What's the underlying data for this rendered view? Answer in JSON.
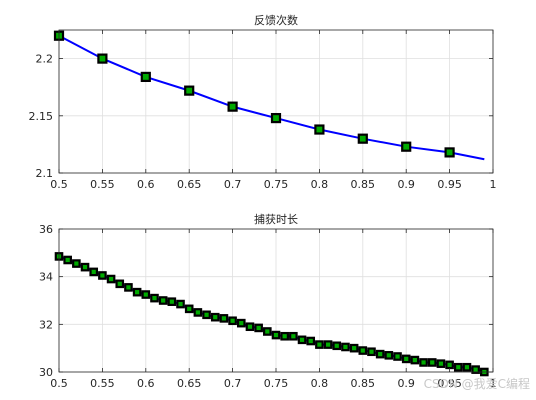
{
  "chart_data": [
    {
      "type": "line",
      "title": "反馈次数",
      "xlim": [
        0.5,
        1.0
      ],
      "ylim": [
        2.1,
        2.225
      ],
      "xticks": [
        "0.5",
        "0.55",
        "0.6",
        "0.65",
        "0.7",
        "0.75",
        "0.8",
        "0.85",
        "0.9",
        "0.95",
        "1"
      ],
      "yticks": [
        "2.1",
        "2.15",
        "2.2"
      ],
      "grid": true,
      "line_color": "#0000ff",
      "marker_edge_color": "#000000",
      "marker_face_color": "#00aa00",
      "curve": {
        "x": [
          0.5,
          0.55,
          0.6,
          0.65,
          0.7,
          0.75,
          0.8,
          0.85,
          0.9,
          0.95,
          0.99
        ],
        "y": [
          2.22,
          2.2,
          2.184,
          2.172,
          2.158,
          2.148,
          2.138,
          2.13,
          2.123,
          2.118,
          2.112
        ]
      },
      "markers": {
        "x": [
          0.5,
          0.55,
          0.6,
          0.65,
          0.7,
          0.75,
          0.8,
          0.85,
          0.9,
          0.95
        ],
        "y": [
          2.22,
          2.2,
          2.184,
          2.172,
          2.158,
          2.148,
          2.138,
          2.13,
          2.123,
          2.118
        ]
      }
    },
    {
      "type": "line",
      "title": "捕获时长",
      "xlim": [
        0.5,
        1.0
      ],
      "ylim": [
        30,
        36
      ],
      "xticks": [
        "0.5",
        "0.55",
        "0.6",
        "0.65",
        "0.7",
        "0.75",
        "0.8",
        "0.85",
        "0.9",
        "0.95",
        "1"
      ],
      "yticks": [
        "30",
        "32",
        "34",
        "36"
      ],
      "grid": true,
      "line_color": "#0000ff",
      "marker_edge_color": "#000000",
      "marker_face_color": "#00aa00",
      "curve": {
        "x": [
          0.5,
          0.51,
          0.52,
          0.53,
          0.54,
          0.55,
          0.56,
          0.57,
          0.58,
          0.59,
          0.6,
          0.61,
          0.62,
          0.63,
          0.64,
          0.65,
          0.66,
          0.67,
          0.68,
          0.69,
          0.7,
          0.71,
          0.72,
          0.73,
          0.74,
          0.75,
          0.76,
          0.77,
          0.78,
          0.79,
          0.8,
          0.81,
          0.82,
          0.83,
          0.84,
          0.85,
          0.86,
          0.87,
          0.88,
          0.89,
          0.9,
          0.91,
          0.92,
          0.93,
          0.94,
          0.95,
          0.96,
          0.97,
          0.98,
          0.99
        ],
        "y": [
          34.85,
          34.7,
          34.55,
          34.4,
          34.2,
          34.05,
          33.9,
          33.7,
          33.55,
          33.35,
          33.25,
          33.1,
          33.0,
          32.95,
          32.85,
          32.65,
          32.5,
          32.4,
          32.3,
          32.25,
          32.15,
          32.05,
          31.9,
          31.85,
          31.7,
          31.55,
          31.5,
          31.5,
          31.35,
          31.3,
          31.15,
          31.15,
          31.1,
          31.05,
          31.0,
          30.9,
          30.85,
          30.75,
          30.7,
          30.65,
          30.55,
          30.5,
          30.4,
          30.4,
          30.35,
          30.3,
          30.2,
          30.2,
          30.1,
          30.0
        ]
      },
      "markers": {
        "x": [
          0.5,
          0.51,
          0.52,
          0.53,
          0.54,
          0.55,
          0.56,
          0.57,
          0.58,
          0.59,
          0.6,
          0.61,
          0.62,
          0.63,
          0.64,
          0.65,
          0.66,
          0.67,
          0.68,
          0.69,
          0.7,
          0.71,
          0.72,
          0.73,
          0.74,
          0.75,
          0.76,
          0.77,
          0.78,
          0.79,
          0.8,
          0.81,
          0.82,
          0.83,
          0.84,
          0.85,
          0.86,
          0.87,
          0.88,
          0.89,
          0.9,
          0.91,
          0.92,
          0.93,
          0.94,
          0.95,
          0.96,
          0.97,
          0.98,
          0.99
        ],
        "y": [
          34.85,
          34.7,
          34.55,
          34.4,
          34.2,
          34.05,
          33.9,
          33.7,
          33.55,
          33.35,
          33.25,
          33.1,
          33.0,
          32.95,
          32.85,
          32.65,
          32.5,
          32.4,
          32.3,
          32.25,
          32.15,
          32.05,
          31.9,
          31.85,
          31.7,
          31.55,
          31.5,
          31.5,
          31.35,
          31.3,
          31.15,
          31.15,
          31.1,
          31.05,
          31.0,
          30.9,
          30.85,
          30.75,
          30.7,
          30.65,
          30.55,
          30.5,
          30.4,
          30.4,
          30.35,
          30.3,
          30.2,
          30.2,
          30.1,
          30.0
        ]
      }
    }
  ],
  "watermark": "CSDN @我爱C编程"
}
